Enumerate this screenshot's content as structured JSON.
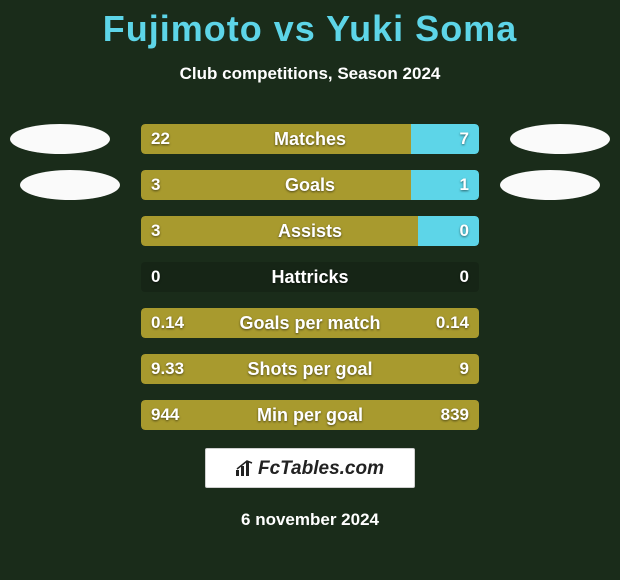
{
  "header": {
    "title": "Fujimoto vs Yuki Soma",
    "subtitle": "Club competitions, Season 2024"
  },
  "colors": {
    "left_bar": "#a89a2e",
    "right_bar": "#5dd5e8",
    "neutral_bar": "rgba(0,0,0,0.15)",
    "title_color": "#5dd5e8",
    "background": "#1a2c1a"
  },
  "stats": [
    {
      "label": "Matches",
      "left_val": "22",
      "right_val": "7",
      "left_pct": 80,
      "right_pct": 20
    },
    {
      "label": "Goals",
      "left_val": "3",
      "right_val": "1",
      "left_pct": 80,
      "right_pct": 20
    },
    {
      "label": "Assists",
      "left_val": "3",
      "right_val": "0",
      "left_pct": 82,
      "right_pct": 18
    },
    {
      "label": "Hattricks",
      "left_val": "0",
      "right_val": "0",
      "left_pct": 0,
      "right_pct": 0
    },
    {
      "label": "Goals per match",
      "left_val": "0.14",
      "right_val": "0.14",
      "left_pct": 100,
      "right_pct": 0
    },
    {
      "label": "Shots per goal",
      "left_val": "9.33",
      "right_val": "9",
      "left_pct": 100,
      "right_pct": 0
    },
    {
      "label": "Min per goal",
      "left_val": "944",
      "right_val": "839",
      "left_pct": 100,
      "right_pct": 0
    }
  ],
  "brand": {
    "text": "FcTables.com"
  },
  "footer": {
    "date": "6 november 2024"
  }
}
